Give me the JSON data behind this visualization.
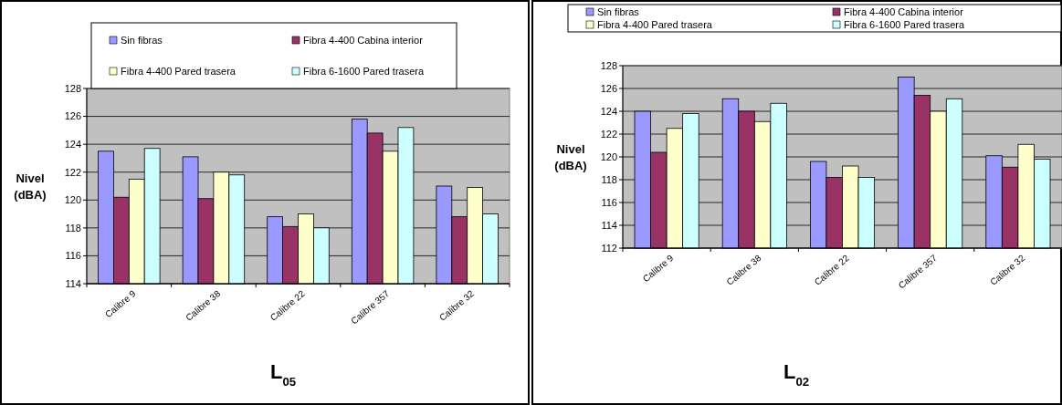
{
  "chart_data": [
    {
      "type": "bar",
      "title": "L$_{05}$",
      "ylabel": "Nivel (dBA)",
      "categories": [
        "Calibre 9",
        "Calibre 38",
        "Calibre 22",
        "Calibre 357",
        "Calibre 32"
      ],
      "series": [
        {
          "name": "Sin fibras",
          "color": "#9999ff",
          "values": [
            123.5,
            123.1,
            118.8,
            125.8,
            121.0
          ]
        },
        {
          "name": "Fibra 4-400 Cabina interior",
          "color": "#993366",
          "values": [
            120.2,
            120.1,
            118.1,
            124.8,
            118.8
          ]
        },
        {
          "name": "Fibra 4-400 Pared trasera",
          "color": "#ffffcc",
          "values": [
            121.5,
            122.0,
            119.0,
            123.5,
            120.9
          ]
        },
        {
          "name": "Fibra 6-1600 Pared trasera",
          "color": "#ccffff",
          "values": [
            123.7,
            121.8,
            118.0,
            125.2,
            119.0
          ]
        }
      ],
      "ylim": [
        114,
        128
      ],
      "yticks": [
        114,
        116,
        118,
        120,
        122,
        124,
        126,
        128
      ],
      "grid": "y",
      "legend": "top"
    },
    {
      "type": "bar",
      "title": "L$_{02}$",
      "ylabel": "Nivel (dBA)",
      "categories": [
        "Calibre 9",
        "Calibre 38",
        "Calibre 22",
        "Calibre 357",
        "Calibre 32"
      ],
      "series": [
        {
          "name": "Sin fibras",
          "color": "#9999ff",
          "values": [
            124.0,
            125.1,
            119.6,
            127.0,
            120.1
          ]
        },
        {
          "name": "Fibra 4-400 Cabina interior",
          "color": "#993366",
          "values": [
            120.4,
            124.0,
            118.2,
            125.4,
            119.1
          ]
        },
        {
          "name": "Fibra 4-400 Pared trasera",
          "color": "#ffffcc",
          "values": [
            122.5,
            123.1,
            119.2,
            124.0,
            121.1
          ]
        },
        {
          "name": "Fibra 6-1600 Pared trasera",
          "color": "#ccffff",
          "values": [
            123.8,
            124.7,
            118.2,
            125.1,
            119.8
          ]
        }
      ],
      "ylim": [
        112,
        128
      ],
      "yticks": [
        112,
        114,
        116,
        118,
        120,
        122,
        124,
        126,
        128
      ],
      "grid": "y",
      "legend": "top"
    }
  ]
}
